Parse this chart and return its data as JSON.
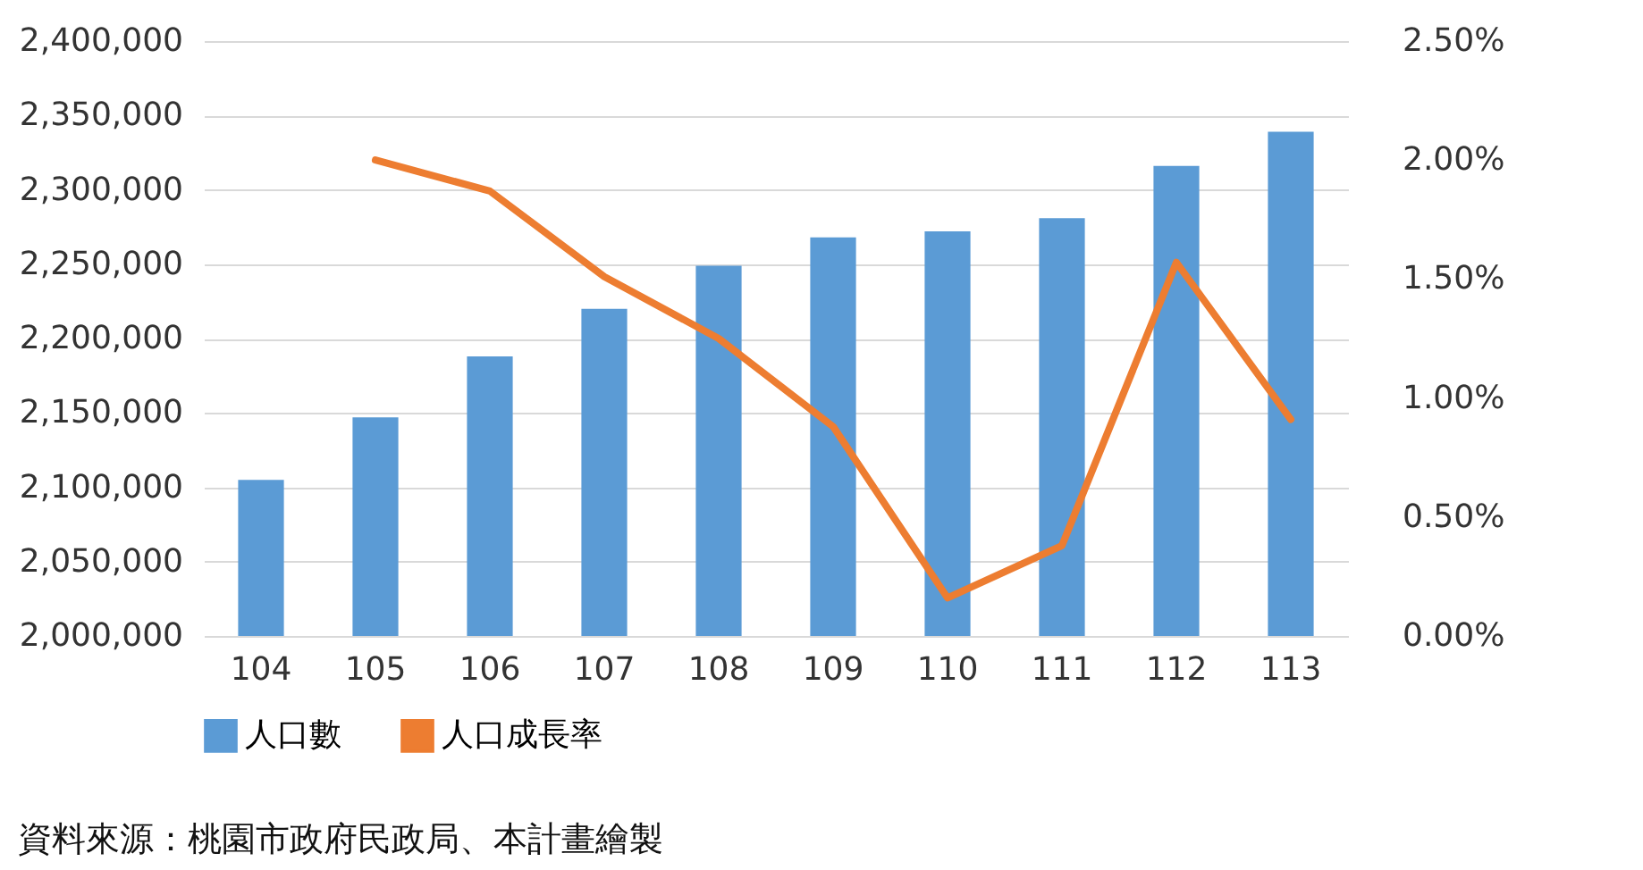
{
  "chart_data": {
    "type": "bar",
    "categories": [
      "104",
      "105",
      "106",
      "107",
      "108",
      "109",
      "110",
      "111",
      "112",
      "113"
    ],
    "series": [
      {
        "name": "人口數",
        "color": "#5b9bd5",
        "values": [
          2105000,
          2147000,
          2188000,
          2220000,
          2249000,
          2268000,
          2272000,
          2281000,
          2316000,
          2339000
        ]
      },
      {
        "name": "人口成長率",
        "type": "line",
        "axis": "y2",
        "color": "#ed7d31",
        "values": [
          null,
          2.0,
          1.87,
          1.51,
          1.25,
          0.88,
          0.16,
          0.38,
          1.57,
          0.91
        ]
      }
    ],
    "ylim": [
      2000000,
      2400000
    ],
    "yticks": [
      {
        "value": 2000000,
        "label": "2,000,000"
      },
      {
        "value": 2050000,
        "label": "2,050,000"
      },
      {
        "value": 2100000,
        "label": "2,100,000"
      },
      {
        "value": 2150000,
        "label": "2,150,000"
      },
      {
        "value": 2200000,
        "label": "2,200,000"
      },
      {
        "value": 2250000,
        "label": "2,250,000"
      },
      {
        "value": 2300000,
        "label": "2,300,000"
      },
      {
        "value": 2350000,
        "label": "2,350,000"
      },
      {
        "value": 2400000,
        "label": "2,400,000"
      }
    ],
    "y2lim": [
      0,
      2.5
    ],
    "y2ticks": [
      {
        "value": 0,
        "label": "0.00%"
      },
      {
        "value": 0.5,
        "label": "0.50%"
      },
      {
        "value": 1,
        "label": "1.00%"
      },
      {
        "value": 1.5,
        "label": "1.50%"
      },
      {
        "value": 2,
        "label": "2.00%"
      },
      {
        "value": 2.5,
        "label": "2.50%"
      }
    ],
    "grid": "y",
    "legend": "bottom",
    "marker": "none",
    "line_style": "solid",
    "annotations": [
      "資料來源：桃園市政府民政局、本計畫繪製"
    ]
  }
}
